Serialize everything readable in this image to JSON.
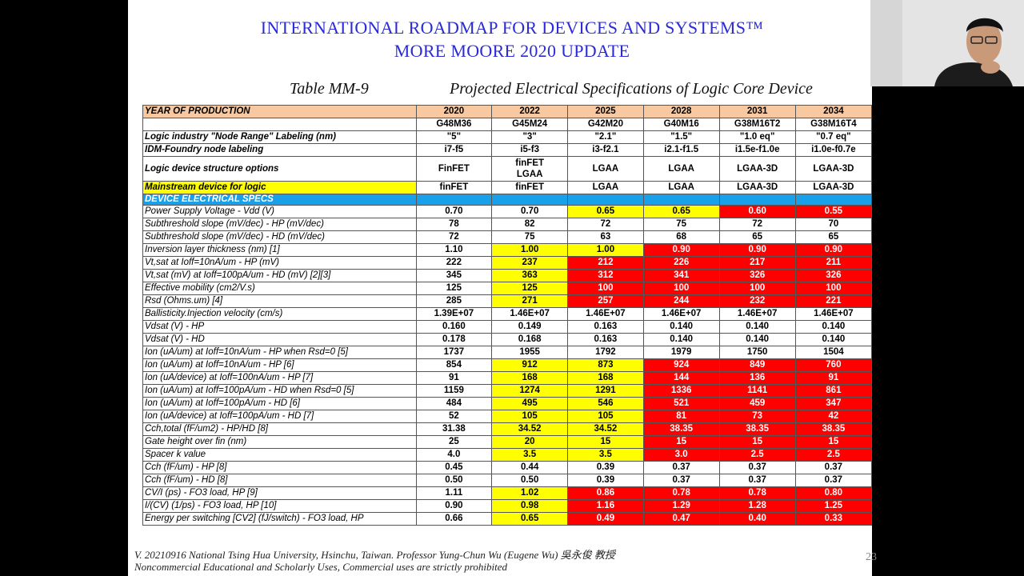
{
  "header": {
    "line1": "INTERNATIONAL ROADMAP FOR DEVICES AND SYSTEMS™",
    "line2": "MORE MOORE   2020 UPDATE"
  },
  "caption": {
    "table_id": "Table MM-9",
    "title": "Projected Electrical Specifications of Logic Core Device"
  },
  "table": {
    "rows": [
      {
        "label": "YEAR OF PRODUCTION",
        "values": [
          "2020",
          "2022",
          "2025",
          "2028",
          "2031",
          "2034"
        ],
        "style": "orange",
        "colors": [
          "",
          "",
          "",
          "",
          "",
          ""
        ]
      },
      {
        "label": "",
        "values": [
          "G48M36",
          "G45M24",
          "G42M20",
          "G40M16",
          "G38M16T2",
          "G38M16T4"
        ],
        "style": "",
        "colors": [
          "",
          "",
          "",
          "",
          "",
          ""
        ]
      },
      {
        "label": "Logic industry \"Node Range\" Labeling (nm)",
        "values": [
          "\"5\"",
          "\"3\"",
          "\"2.1\"",
          "\"1.5\"",
          "\"1.0 eq\"",
          "\"0.7 eq\""
        ],
        "style": "bold",
        "colors": [
          "",
          "",
          "",
          "",
          "",
          ""
        ]
      },
      {
        "label": "IDM-Foundry node labeling",
        "values": [
          "i7-f5",
          "i5-f3",
          "i3-f2.1",
          "i2.1-f1.5",
          "i1.5e-f1.0e",
          "i1.0e-f0.7e"
        ],
        "style": "bold",
        "colors": [
          "",
          "",
          "",
          "",
          "",
          ""
        ]
      },
      {
        "label": "Logic device structure options",
        "values": [
          "FinFET",
          "finFET\nLGAA",
          "LGAA",
          "LGAA",
          "LGAA-3D",
          "LGAA-3D"
        ],
        "style": "bold tall",
        "colors": [
          "",
          "",
          "",
          "",
          "",
          ""
        ]
      },
      {
        "label": "Mainstream device for logic",
        "values": [
          "finFET",
          "finFET",
          "LGAA",
          "LGAA",
          "LGAA-3D",
          "LGAA-3D"
        ],
        "style": "bold mainstream",
        "colors": [
          "",
          "",
          "",
          "",
          "",
          ""
        ]
      },
      {
        "label": "DEVICE ELECTRICAL SPECS",
        "values": [
          "",
          "",
          "",
          "",
          "",
          ""
        ],
        "style": "blue",
        "colors": [
          "",
          "",
          "",
          "",
          "",
          ""
        ]
      },
      {
        "label": "Power Supply Voltage - Vdd (V)",
        "values": [
          "0.70",
          "0.70",
          "0.65",
          "0.65",
          "0.60",
          "0.55"
        ],
        "style": "",
        "colors": [
          "",
          "",
          "Y",
          "Y",
          "R",
          "R"
        ]
      },
      {
        "label": "Subthreshold slope (mV/dec) - HP (mV/dec)",
        "values": [
          "78",
          "82",
          "72",
          "75",
          "72",
          "70"
        ],
        "style": "",
        "colors": [
          "",
          "",
          "",
          "",
          "",
          ""
        ]
      },
      {
        "label": "Subthreshold slope (mV/dec) - HD (mV/dec)",
        "values": [
          "72",
          "75",
          "63",
          "68",
          "65",
          "65"
        ],
        "style": "",
        "colors": [
          "",
          "",
          "",
          "",
          "",
          ""
        ]
      },
      {
        "label": "Inversion layer thickness (nm) [1]",
        "values": [
          "1.10",
          "1.00",
          "1.00",
          "0.90",
          "0.90",
          "0.90"
        ],
        "style": "",
        "colors": [
          "",
          "Y",
          "Y",
          "R",
          "R",
          "R"
        ]
      },
      {
        "label": "Vt,sat at Ioff=10nA/um - HP (mV)",
        "values": [
          "222",
          "237",
          "212",
          "226",
          "217",
          "211"
        ],
        "style": "",
        "colors": [
          "",
          "Y",
          "R",
          "R",
          "R",
          "R"
        ]
      },
      {
        "label": "Vt,sat (mV) at Ioff=100pA/um - HD (mV) [2][3]",
        "values": [
          "345",
          "363",
          "312",
          "341",
          "326",
          "326"
        ],
        "style": "",
        "colors": [
          "",
          "Y",
          "R",
          "R",
          "R",
          "R"
        ]
      },
      {
        "label": "Effective mobility (cm2/V.s)",
        "values": [
          "125",
          "125",
          "100",
          "100",
          "100",
          "100"
        ],
        "style": "",
        "colors": [
          "",
          "Y",
          "R",
          "R",
          "R",
          "R"
        ]
      },
      {
        "label": "Rsd (Ohms.um) [4]",
        "values": [
          "285",
          "271",
          "257",
          "244",
          "232",
          "221"
        ],
        "style": "",
        "colors": [
          "",
          "Y",
          "R",
          "R",
          "R",
          "R"
        ]
      },
      {
        "label": "Ballisticity.Injection velocity (cm/s)",
        "values": [
          "1.39E+07",
          "1.46E+07",
          "1.46E+07",
          "1.46E+07",
          "1.46E+07",
          "1.46E+07"
        ],
        "style": "",
        "colors": [
          "",
          "",
          "",
          "",
          "",
          ""
        ]
      },
      {
        "label": "Vdsat (V) - HP",
        "values": [
          "0.160",
          "0.149",
          "0.163",
          "0.140",
          "0.140",
          "0.140"
        ],
        "style": "",
        "colors": [
          "",
          "",
          "",
          "",
          "",
          ""
        ]
      },
      {
        "label": "Vdsat (V) - HD",
        "values": [
          "0.178",
          "0.168",
          "0.163",
          "0.140",
          "0.140",
          "0.140"
        ],
        "style": "",
        "colors": [
          "",
          "",
          "",
          "",
          "",
          ""
        ]
      },
      {
        "label": "Ion (uA/um) at Ioff=10nA/um - HP when Rsd=0 [5]",
        "values": [
          "1737",
          "1955",
          "1792",
          "1979",
          "1750",
          "1504"
        ],
        "style": "",
        "colors": [
          "",
          "",
          "",
          "",
          "",
          ""
        ]
      },
      {
        "label": "Ion (uA/um) at Ioff=10nA/um - HP [6]",
        "values": [
          "854",
          "912",
          "873",
          "924",
          "849",
          "760"
        ],
        "style": "",
        "colors": [
          "",
          "Y",
          "Y",
          "R",
          "R",
          "R"
        ]
      },
      {
        "label": "Ion (uA/device) at Ioff=100nA/um - HP  [7]",
        "values": [
          "91",
          "168",
          "168",
          "144",
          "136",
          "91"
        ],
        "style": "",
        "colors": [
          "",
          "Y",
          "Y",
          "R",
          "R",
          "R"
        ]
      },
      {
        "label": "Ion (uA/um) at Ioff=100pA/um - HD when Rsd=0 [5]",
        "values": [
          "1159",
          "1274",
          "1291",
          "1336",
          "1141",
          "861"
        ],
        "style": "",
        "colors": [
          "",
          "Y",
          "Y",
          "R",
          "R",
          "R"
        ]
      },
      {
        "label": "Ion (uA/um) at Ioff=100pA/um - HD [6]",
        "values": [
          "484",
          "495",
          "546",
          "521",
          "459",
          "347"
        ],
        "style": "",
        "colors": [
          "",
          "Y",
          "Y",
          "R",
          "R",
          "R"
        ]
      },
      {
        "label": "Ion (uA/device) at Ioff=100pA/um - HD [7]",
        "values": [
          "52",
          "105",
          "105",
          "81",
          "73",
          "42"
        ],
        "style": "",
        "colors": [
          "",
          "Y",
          "Y",
          "R",
          "R",
          "R"
        ]
      },
      {
        "label": "Cch,total (fF/um2) - HP/HD [8]",
        "values": [
          "31.38",
          "34.52",
          "34.52",
          "38.35",
          "38.35",
          "38.35"
        ],
        "style": "",
        "colors": [
          "",
          "Y",
          "Y",
          "R",
          "R",
          "R"
        ]
      },
      {
        "label": "Gate height over fin (nm)",
        "values": [
          "25",
          "20",
          "15",
          "15",
          "15",
          "15"
        ],
        "style": "",
        "colors": [
          "",
          "Y",
          "Y",
          "R",
          "R",
          "R"
        ]
      },
      {
        "label": "Spacer k value",
        "values": [
          "4.0",
          "3.5",
          "3.5",
          "3.0",
          "2.5",
          "2.5"
        ],
        "style": "",
        "colors": [
          "",
          "Y",
          "Y",
          "R",
          "R",
          "R"
        ]
      },
      {
        "label": "Cch (fF/um) - HP [8]",
        "values": [
          "0.45",
          "0.44",
          "0.39",
          "0.37",
          "0.37",
          "0.37"
        ],
        "style": "",
        "colors": [
          "",
          "",
          "",
          "",
          "",
          ""
        ]
      },
      {
        "label": "Cch (fF/um) - HD [8]",
        "values": [
          "0.50",
          "0.50",
          "0.39",
          "0.37",
          "0.37",
          "0.37"
        ],
        "style": "",
        "colors": [
          "",
          "",
          "",
          "",
          "",
          ""
        ]
      },
      {
        "label": "CV/I (ps) - FO3 load, HP [9]",
        "values": [
          "1.11",
          "1.02",
          "0.86",
          "0.78",
          "0.78",
          "0.80"
        ],
        "style": "",
        "colors": [
          "",
          "Y",
          "R",
          "R",
          "R",
          "R"
        ]
      },
      {
        "label": "I/(CV) (1/ps) - FO3 load, HP [10]",
        "values": [
          "0.90",
          "0.98",
          "1.16",
          "1.29",
          "1.28",
          "1.25"
        ],
        "style": "",
        "colors": [
          "",
          "Y",
          "R",
          "R",
          "R",
          "R"
        ]
      },
      {
        "label": "Energy per switching [CV2] (fJ/switch) - FO3 load, HP",
        "values": [
          "0.66",
          "0.65",
          "0.49",
          "0.47",
          "0.40",
          "0.33"
        ],
        "style": "",
        "colors": [
          "",
          "Y",
          "R",
          "R",
          "R",
          "R"
        ]
      }
    ]
  },
  "footer": {
    "line1": "V. 20210916 National Tsing Hua University, Hsinchu, Taiwan. Professor Yung-Chun Wu (Eugene Wu) 吳永俊 教授",
    "line2": "Noncommercial Educational and Scholarly Uses, Commercial uses are strictly prohibited",
    "page_number": "23"
  },
  "colors": {
    "title_blue": "#2a2ad6",
    "header_orange": "#f8c8a0",
    "section_blue": "#1aa0e8",
    "yellow": "#ffff00",
    "red": "#ff0000"
  },
  "webcam": {
    "content": "presenter-video"
  }
}
